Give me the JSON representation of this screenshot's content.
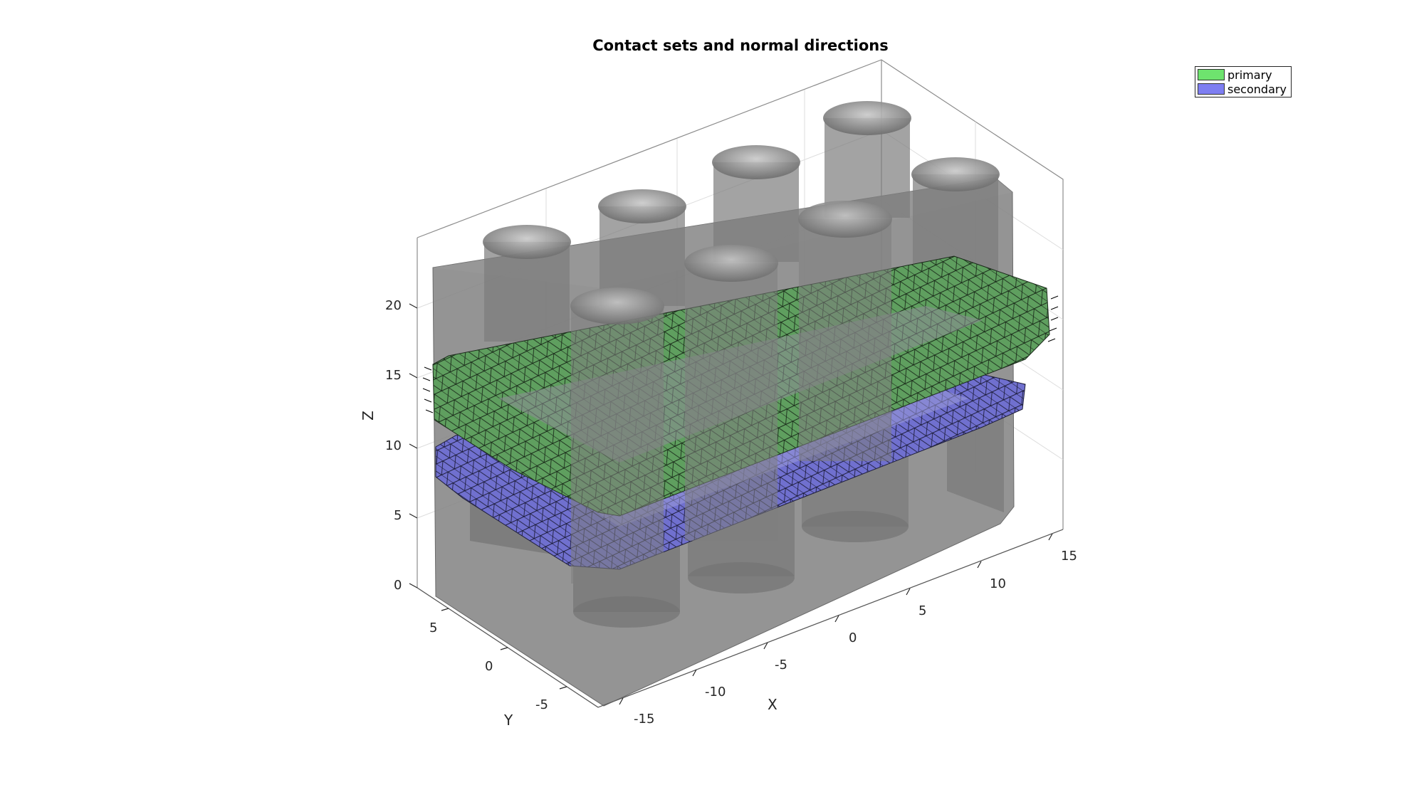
{
  "figure": {
    "title": "Contact sets and normal directions",
    "legend": [
      {
        "label": "primary",
        "color": "#6ee36e"
      },
      {
        "label": "secondary",
        "color": "#7e7ef2"
      }
    ]
  },
  "axes": {
    "x": {
      "label": "X",
      "ticks": [
        "-15",
        "-10",
        "-5",
        "0",
        "5",
        "10",
        "15"
      ]
    },
    "y": {
      "label": "Y",
      "ticks": [
        "5",
        "0",
        "-5"
      ]
    },
    "z": {
      "label": "Z",
      "ticks": [
        "0",
        "5",
        "10",
        "15",
        "20"
      ]
    }
  },
  "colors": {
    "body": "#7a7a7a",
    "primary_mesh": "#5c9a5c",
    "secondary_mesh": "#6e6ed6",
    "grid": "#d9d9d9"
  }
}
